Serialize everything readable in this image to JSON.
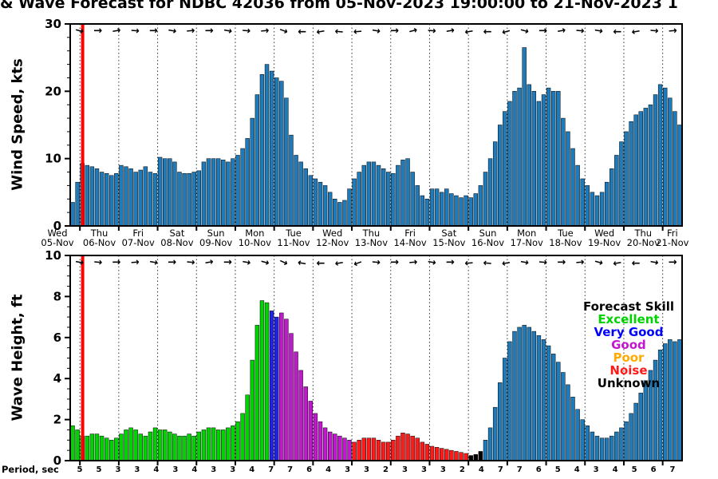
{
  "title": "& Wave Forecast for NDBC 42036 from 05-Nov-2023 19:00:00 to 21-Nov-2023 1",
  "axes": {
    "wind_ylabel": "Wind Speed, kts",
    "wave_ylabel": "Wave Height, ft",
    "period_label": "Period, sec"
  },
  "legend": {
    "title": "Forecast Skill",
    "entries": [
      {
        "label": "Excellent",
        "color": "#00d400"
      },
      {
        "label": "Very Good",
        "color": "#0000ff"
      },
      {
        "label": "Good",
        "color": "#c317cf"
      },
      {
        "label": "Poor",
        "color": "#ffaa00"
      },
      {
        "label": "Noise",
        "color": "#ff1a1a"
      },
      {
        "label": "Unknown",
        "color": "#000000"
      }
    ]
  },
  "now_line_color": "#ff0000",
  "x_axis": {
    "days": [
      {
        "wd": "Wed",
        "d": "05-Nov"
      },
      {
        "wd": "Thu",
        "d": "06-Nov"
      },
      {
        "wd": "Fri",
        "d": "07-Nov"
      },
      {
        "wd": "Sat",
        "d": "08-Nov"
      },
      {
        "wd": "Sun",
        "d": "09-Nov"
      },
      {
        "wd": "Mon",
        "d": "10-Nov"
      },
      {
        "wd": "Tue",
        "d": "11-Nov"
      },
      {
        "wd": "Wed",
        "d": "12-Nov"
      },
      {
        "wd": "Thu",
        "d": "13-Nov"
      },
      {
        "wd": "Fri",
        "d": "14-Nov"
      },
      {
        "wd": "Sat",
        "d": "15-Nov"
      },
      {
        "wd": "Sun",
        "d": "16-Nov"
      },
      {
        "wd": "Mon",
        "d": "17-Nov"
      },
      {
        "wd": "Tue",
        "d": "18-Nov"
      },
      {
        "wd": "Wed",
        "d": "19-Nov"
      },
      {
        "wd": "Thu",
        "d": "20-Nov"
      },
      {
        "wd": "Fri",
        "d": "21-Nov"
      }
    ]
  },
  "chart_data": [
    {
      "type": "bar",
      "name": "wind_speed_kts",
      "ylabel": "Wind Speed, kts",
      "ylim": [
        0,
        30
      ],
      "yticks": [
        0,
        10,
        20,
        30
      ],
      "bar_color": "#1e7ab8",
      "bars_per_day": 8,
      "values": [
        3.5,
        6.5,
        9.3,
        9.0,
        8.8,
        8.5,
        8.0,
        7.8,
        7.5,
        7.8,
        9.0,
        8.8,
        8.5,
        8.0,
        8.3,
        8.8,
        8.0,
        7.8,
        10.2,
        10.0,
        10.0,
        9.5,
        8.0,
        7.8,
        7.8,
        8.0,
        8.2,
        9.5,
        10.0,
        10.0,
        10.0,
        9.8,
        9.5,
        10.0,
        10.5,
        11.5,
        13.0,
        16.0,
        19.5,
        22.5,
        24.0,
        23.0,
        22.0,
        21.5,
        19.0,
        13.5,
        10.5,
        9.5,
        8.5,
        7.5,
        7.0,
        6.5,
        6.0,
        5.0,
        4.0,
        3.5,
        3.8,
        5.5,
        7.0,
        8.0,
        9.0,
        9.5,
        9.5,
        9.0,
        8.5,
        8.0,
        7.8,
        9.0,
        9.8,
        10.0,
        8.0,
        6.0,
        4.5,
        4.0,
        5.5,
        5.5,
        5.0,
        5.5,
        4.8,
        4.5,
        4.2,
        4.5,
        4.2,
        4.8,
        6.0,
        8.0,
        10.0,
        12.5,
        15.0,
        17.0,
        18.5,
        20.0,
        20.5,
        26.5,
        21.0,
        20.0,
        18.5,
        19.5,
        20.5,
        20.0,
        20.0,
        16.0,
        14.0,
        11.5,
        9.0,
        7.0,
        6.0,
        5.0,
        4.5,
        5.0,
        6.5,
        8.5,
        10.5,
        12.5,
        14.0,
        15.5,
        16.5,
        17.0,
        17.5,
        18.0,
        19.5,
        21.0,
        20.5,
        19.0,
        17.0,
        15.0
      ],
      "arrow_angles_deg": [
        15,
        0,
        -10,
        5,
        0,
        10,
        -5,
        0,
        10,
        5,
        -5,
        20,
        180,
        170,
        185,
        175,
        10,
        0,
        -15,
        5,
        -10,
        170,
        180,
        165,
        15,
        0,
        -10,
        5,
        10,
        180,
        170,
        5,
        -5
      ]
    },
    {
      "type": "bar",
      "name": "wave_height_ft",
      "ylabel": "Wave Height, ft",
      "ylim": [
        0,
        10
      ],
      "yticks": [
        0,
        2,
        4,
        6,
        8,
        10
      ],
      "bars_per_day": 8,
      "skill_colors": {
        "excellent": "#00d400",
        "very_good": "#2222ee",
        "good": "#c317cf",
        "noise": "#ff1a1a",
        "unknown": "#000000",
        "standard": "#1e7ab8"
      },
      "skill_runs": [
        [
          "excellent",
          41
        ],
        [
          "very_good",
          2
        ],
        [
          "good",
          15
        ],
        [
          "noise",
          24
        ],
        [
          "unknown",
          3
        ],
        [
          "standard",
          41
        ]
      ],
      "values": [
        1.7,
        1.5,
        1.2,
        1.2,
        1.3,
        1.3,
        1.2,
        1.1,
        1.0,
        1.1,
        1.3,
        1.5,
        1.6,
        1.5,
        1.3,
        1.2,
        1.4,
        1.6,
        1.5,
        1.5,
        1.4,
        1.3,
        1.2,
        1.2,
        1.3,
        1.2,
        1.4,
        1.5,
        1.6,
        1.6,
        1.5,
        1.5,
        1.6,
        1.7,
        1.9,
        2.3,
        3.2,
        4.9,
        6.6,
        7.8,
        7.7,
        7.3,
        7.0,
        7.2,
        6.9,
        6.2,
        5.3,
        4.4,
        3.6,
        2.9,
        2.3,
        1.9,
        1.6,
        1.4,
        1.3,
        1.2,
        1.1,
        1.0,
        0.9,
        1.0,
        1.1,
        1.1,
        1.1,
        1.0,
        0.9,
        0.9,
        1.0,
        1.2,
        1.35,
        1.3,
        1.2,
        1.1,
        0.9,
        0.8,
        0.7,
        0.65,
        0.6,
        0.55,
        0.5,
        0.45,
        0.4,
        0.35,
        0.25,
        0.3,
        0.45,
        1.0,
        1.6,
        2.6,
        3.8,
        5.0,
        5.8,
        6.3,
        6.5,
        6.6,
        6.5,
        6.3,
        6.1,
        5.9,
        5.6,
        5.2,
        4.8,
        4.3,
        3.7,
        3.1,
        2.5,
        2.0,
        1.7,
        1.4,
        1.2,
        1.1,
        1.1,
        1.2,
        1.4,
        1.6,
        1.9,
        2.3,
        2.8,
        3.3,
        3.9,
        4.4,
        4.9,
        5.4,
        5.7,
        5.9,
        5.8,
        5.9
      ],
      "arrow_angles_deg": [
        10,
        5,
        0,
        -5,
        10,
        0,
        5,
        -10,
        0,
        10,
        15,
        25,
        190,
        180,
        170,
        160,
        5,
        0,
        -5,
        10,
        0,
        175,
        185,
        170,
        10,
        5,
        0,
        -5,
        15,
        170,
        180,
        10,
        0
      ],
      "period_sec": [
        5,
        5,
        3,
        3,
        4,
        3,
        4,
        3,
        3,
        4,
        7,
        7,
        6,
        4,
        3,
        3,
        2,
        3,
        3,
        3,
        2,
        4,
        7,
        7,
        6,
        5,
        4,
        3,
        4,
        5,
        6,
        7
      ]
    }
  ]
}
